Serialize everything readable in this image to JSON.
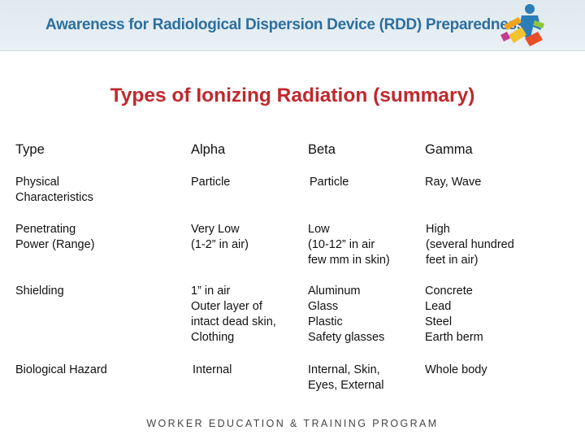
{
  "banner": {
    "title": "Awareness for Radiological Dispersion Device (RDD) Preparedness",
    "logo_icon": "worker-with-tools-logo"
  },
  "slide": {
    "title": "Types of Ionizing Radiation (summary)"
  },
  "table": {
    "headers": [
      "Type",
      "Alpha",
      "Beta",
      "Gamma"
    ],
    "rows": [
      {
        "label": "Physical\nCharacteristics",
        "alpha": "Particle",
        "beta": " Particle",
        "gamma": "Ray, Wave"
      },
      {
        "label": "Penetrating\nPower (Range)",
        "alpha": "Very Low\n(1-2” in air)",
        "beta": "Low\n(10-12” in air\nfew mm in skin)",
        "gamma": " High\n (several hundred\n feet in air)"
      },
      {
        "label": "Shielding",
        "alpha": "1” in air\nOuter layer of\nintact dead skin,\nClothing",
        "beta": "Aluminum\nGlass\nPlastic\nSafety glasses",
        "gamma": "Concrete\nLead\nSteel\nEarth berm"
      },
      {
        "label": "Biological Hazard",
        "alpha": " Internal",
        "beta": "Internal, Skin,\nEyes, External",
        "gamma": "Whole body"
      }
    ]
  },
  "footer": {
    "text": "WORKER EDUCATION & TRAINING PROGRAM"
  },
  "colors": {
    "title_red": "#c1282d",
    "banner_blue": "#2c6f9e",
    "banner_bg": "#e3ecf1"
  }
}
